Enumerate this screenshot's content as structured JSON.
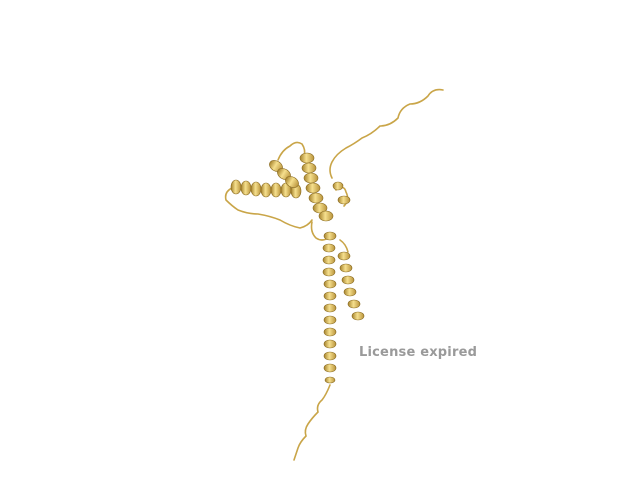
{
  "watermark": {
    "text": "License expired"
  },
  "colors": {
    "background": "#ffffff",
    "ribbon": "#e8c25a",
    "ribbon_dark": "#a5822c",
    "ribbon_light": "#f6e08e",
    "coil": "#c9a548",
    "watermark": "#9a9a9a"
  },
  "structure": {
    "representation": "cartoon"
  }
}
